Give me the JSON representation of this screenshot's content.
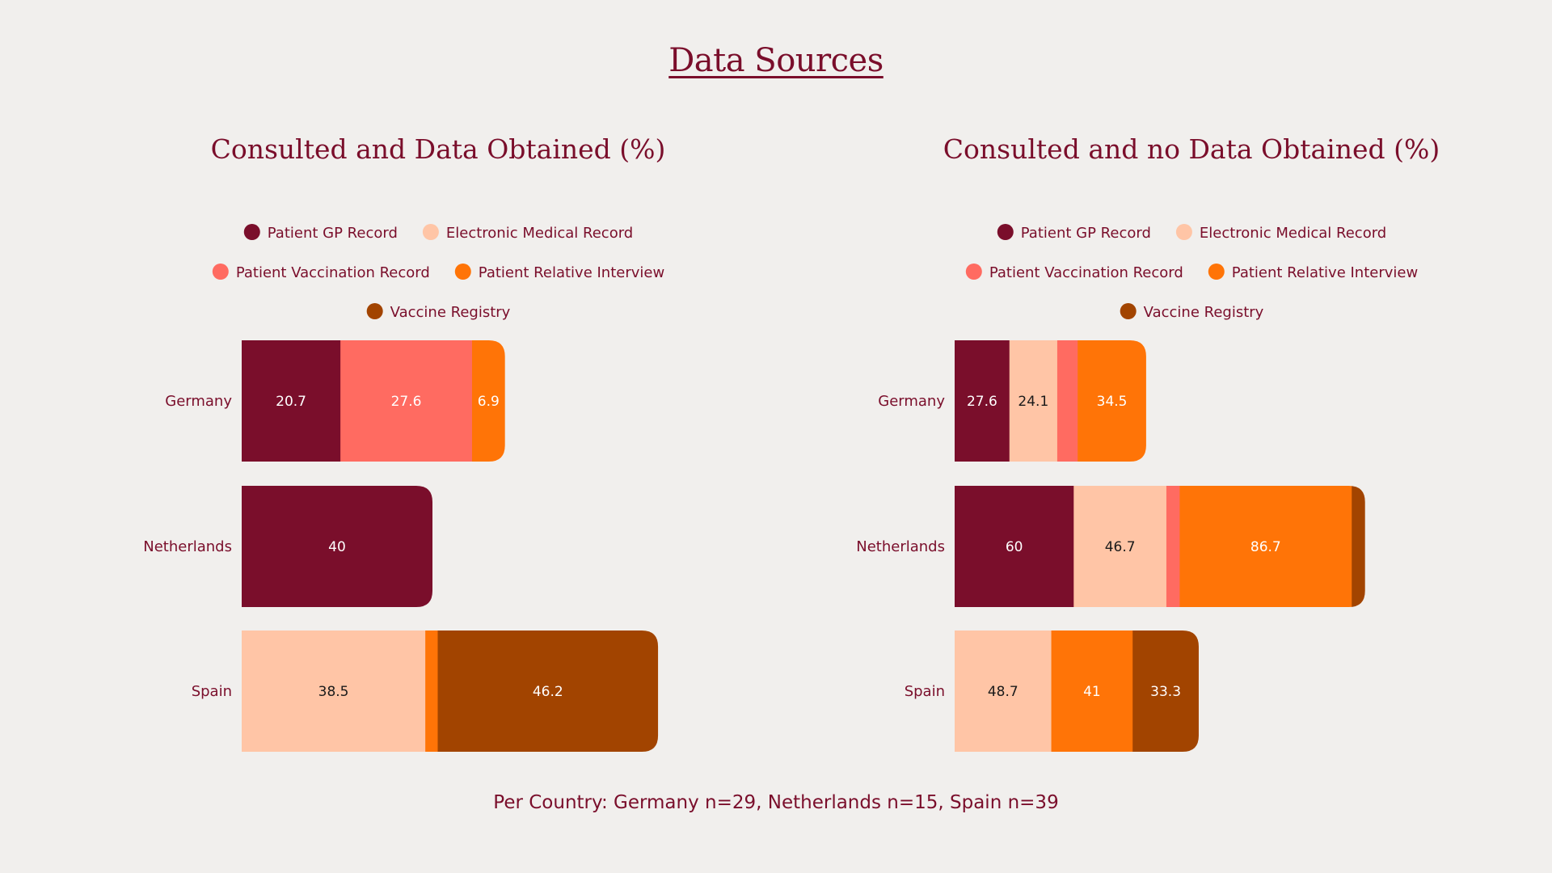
{
  "page": {
    "title": "Data Sources",
    "footnote": "Per Country: Germany n=29, Netherlands n=15, Spain n=39"
  },
  "colors": {
    "Patient GP Record": "#7a0e2b",
    "Electronic Medical Record": "#ffc5a6",
    "Patient Vaccination Record": "#ff6b61",
    "Patient Relative Interview": "#ff7407",
    "Vaccine Registry": "#a24400"
  },
  "chart_data": [
    {
      "type": "bar",
      "orientation": "horizontal",
      "stacked": true,
      "title": "Consulted and Data Obtained (%)",
      "categories": [
        "Germany",
        "Netherlands",
        "Spain"
      ],
      "legend": [
        "Patient GP Record",
        "Electronic Medical Record",
        "Patient Vaccination Record",
        "Patient Relative Interview",
        "Vaccine Registry"
      ],
      "legend_position": "top",
      "series": [
        {
          "name": "Patient GP Record",
          "values": [
            20.7,
            40,
            0
          ]
        },
        {
          "name": "Electronic Medical Record",
          "values": [
            0,
            0,
            38.5
          ]
        },
        {
          "name": "Patient Vaccination Record",
          "values": [
            27.6,
            0,
            0
          ]
        },
        {
          "name": "Patient Relative Interview",
          "values": [
            6.9,
            0,
            2.6
          ]
        },
        {
          "name": "Vaccine Registry",
          "values": [
            0,
            0,
            46.2
          ]
        }
      ],
      "labels": [
        [
          "20.7",
          "",
          "27.6",
          "6.9",
          ""
        ],
        [
          "40",
          "",
          "",
          "",
          ""
        ],
        [
          "",
          "38.5",
          "",
          "",
          "46.2"
        ]
      ]
    },
    {
      "type": "bar",
      "orientation": "horizontal",
      "stacked": true,
      "title": "Consulted and no Data Obtained (%)",
      "categories": [
        "Germany",
        "Netherlands",
        "Spain"
      ],
      "legend": [
        "Patient GP Record",
        "Electronic Medical Record",
        "Patient Vaccination Record",
        "Patient Relative Interview",
        "Vaccine Registry"
      ],
      "legend_position": "top",
      "series": [
        {
          "name": "Patient GP Record",
          "values": [
            27.6,
            60,
            0
          ]
        },
        {
          "name": "Electronic Medical Record",
          "values": [
            24.1,
            46.7,
            48.7
          ]
        },
        {
          "name": "Patient Vaccination Record",
          "values": [
            10.3,
            6.7,
            0
          ]
        },
        {
          "name": "Patient Relative Interview",
          "values": [
            34.5,
            86.7,
            41
          ]
        },
        {
          "name": "Vaccine Registry",
          "values": [
            0,
            6.7,
            33.3
          ]
        }
      ],
      "labels": [
        [
          "27.6",
          "24.1",
          "",
          "34.5",
          ""
        ],
        [
          "60",
          "46.7",
          "",
          "86.7",
          ""
        ],
        [
          "",
          "48.7",
          "",
          "41",
          "33.3"
        ]
      ]
    }
  ]
}
